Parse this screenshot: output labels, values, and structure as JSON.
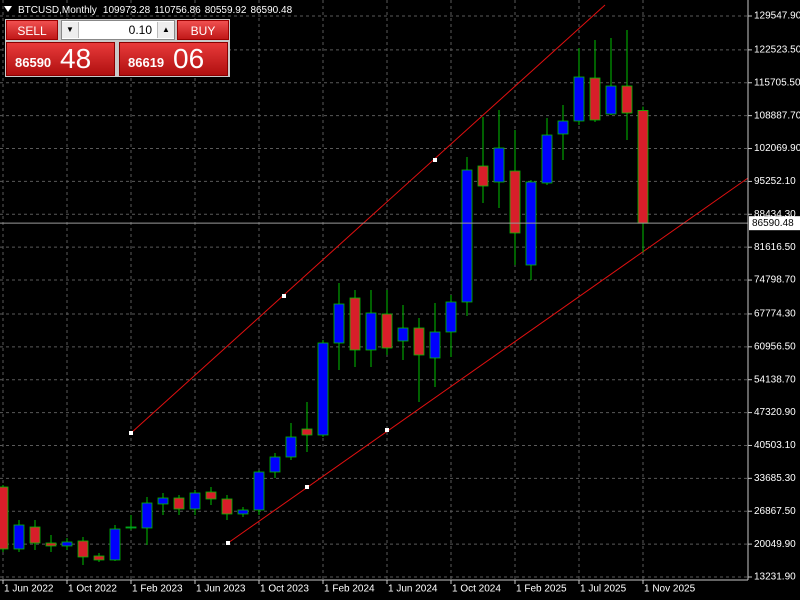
{
  "trade_panel": {
    "sell_label": "SELL",
    "buy_label": "BUY",
    "lot": "0.10",
    "sell_price_main": "86590",
    "sell_price_big": "48",
    "buy_price_main": "86619",
    "buy_price_big": "06"
  },
  "chart_data": {
    "type": "candlestick",
    "symbol": "BTCUSD,Monthly",
    "categories": [
      "1 Jun 2022",
      null,
      null,
      null,
      "1 Oct 2022",
      null,
      null,
      null,
      "1 Feb 2023",
      null,
      null,
      null,
      "1 Jun 2023",
      null,
      null,
      null,
      "1 Oct 2023",
      null,
      null,
      null,
      "1 Feb 2024",
      null,
      null,
      null,
      "1 Jun 2024",
      null,
      null,
      null,
      "1 Oct 2024",
      null,
      null,
      null,
      "1 Feb 2025",
      null,
      null,
      null,
      "1 Jul 2025",
      null,
      null,
      null,
      "1 Nov 2025"
    ],
    "open": [
      31895,
      19043,
      23603,
      20286,
      19664,
      20701,
      17591,
      16762,
      23396,
      23396,
      28371,
      29615,
      27334,
      30858,
      29407,
      26298,
      27127,
      35005,
      38115,
      43921,
      42677,
      61751,
      71081,
      60300,
      67764,
      62166,
      64861,
      58641,
      64032,
      70252,
      98448,
      95131,
      97411,
      77922,
      94923,
      105083,
      107778,
      116693,
      109229,
      115035,
      109973.28
    ],
    "high": [
      32310,
      25054,
      25054,
      21944,
      21323,
      21530,
      18213,
      24017,
      26090,
      29822,
      30651,
      30236,
      31273,
      31895,
      30236,
      27749,
      35420,
      38944,
      45165,
      49519,
      62373,
      74191,
      72740,
      72740,
      72740,
      69630,
      66934,
      70044,
      71703,
      100314,
      108607,
      110059,
      105912,
      95545,
      108400,
      111095,
      122913,
      124572,
      124986,
      126645,
      110756.86
    ],
    "low": [
      18420,
      18420,
      18835,
      18420,
      18835,
      15725,
      16347,
      16555,
      22981,
      19872,
      26090,
      26090,
      26090,
      28164,
      25054,
      25676,
      26090,
      33761,
      37493,
      39152,
      42262,
      56153,
      56775,
      56775,
      59263,
      58227,
      49519,
      52629,
      58849,
      67349,
      90776,
      89739,
      77922,
      74813,
      94508,
      99692,
      106949,
      107571,
      109022,
      103839,
      80559.92
    ],
    "close": [
      19043,
      24017,
      20286,
      19664,
      20494,
      17384,
      16762,
      23188,
      23603,
      28578,
      29615,
      27334,
      30651,
      29407,
      26298,
      27127,
      35005,
      38115,
      42262,
      42677,
      61751,
      69837,
      60300,
      67971,
      60715,
      64861,
      59263,
      64032,
      70252,
      97619,
      94300,
      102180,
      84558,
      95131,
      104875,
      107778,
      116901,
      107985,
      115035,
      109437,
      86590.48
    ],
    "up_color": "#0000ff",
    "down_color": "#d81e2a",
    "wick_color": "#00c000",
    "ylim": [
      12610,
      132865
    ],
    "yticks": [
      {
        "value": 13231.9,
        "label": "13231.90"
      },
      {
        "value": 20049.9,
        "label": "20049.90"
      },
      {
        "value": 26867.5,
        "label": "26867.50"
      },
      {
        "value": 33685.3,
        "label": "33685.30"
      },
      {
        "value": 40503.1,
        "label": "40503.10"
      },
      {
        "value": 47320.9,
        "label": "47320.90"
      },
      {
        "value": 54138.7,
        "label": "54138.70"
      },
      {
        "value": 60956.5,
        "label": "60956.50"
      },
      {
        "value": 67774.3,
        "label": "67774.30"
      },
      {
        "value": 74798.7,
        "label": "74798.70"
      },
      {
        "value": 81616.5,
        "label": "81616.50"
      },
      {
        "value": 88434.3,
        "label": "88434.30"
      },
      {
        "value": 95252.1,
        "label": "95252.10"
      },
      {
        "value": 102069.9,
        "label": "102069.90"
      },
      {
        "value": 108887.7,
        "label": "108887.70"
      },
      {
        "value": 115705.5,
        "label": "115705.50"
      },
      {
        "value": 122523.5,
        "label": "122523.50"
      },
      {
        "value": 129547.9,
        "label": "129547.90"
      }
    ],
    "grid": true
  }
}
